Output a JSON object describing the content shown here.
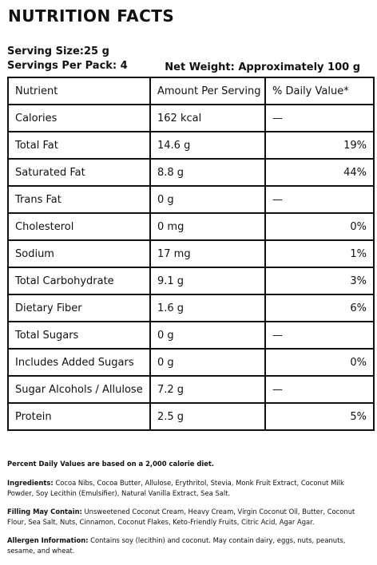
{
  "title": "NUTRITION FACTS",
  "serving_size": "Serving Size:25 g",
  "servings_per_pack": "Servings Per Pack: 4",
  "net_weight": "Net Weight: Approximately 100 g",
  "table": {
    "headers": [
      "Nutrient",
      "Amount Per Serving",
      "% Daily Value*"
    ],
    "rows": [
      {
        "nutrient": "Calories",
        "amount": "162 kcal",
        "dv": "—"
      },
      {
        "nutrient": "Total Fat",
        "amount": "14.6 g",
        "dv": "19%"
      },
      {
        "nutrient": "Saturated Fat",
        "amount": "8.8 g",
        "dv": "44%"
      },
      {
        "nutrient": "Trans Fat",
        "amount": "0 g",
        "dv": "—"
      },
      {
        "nutrient": "Cholesterol",
        "amount": "0 mg",
        "dv": "0%"
      },
      {
        "nutrient": "Sodium",
        "amount": "17 mg",
        "dv": "1%"
      },
      {
        "nutrient": "Total Carbohydrate",
        "amount": "9.1 g",
        "dv": "3%"
      },
      {
        "nutrient": "Dietary Fiber",
        "amount": "1.6 g",
        "dv": "6%"
      },
      {
        "nutrient": "Total Sugars",
        "amount": "0 g",
        "dv": "—"
      },
      {
        "nutrient": "Includes Added Sugars",
        "amount": "0 g",
        "dv": "0%"
      },
      {
        "nutrient": "Sugar Alcohols / Allulose",
        "amount": "7.2 g",
        "dv": "—"
      },
      {
        "nutrient": "Protein",
        "amount": "2.5 g",
        "dv": "5%"
      }
    ]
  },
  "notes": {
    "percent_dv": "Percent Daily Values are based on a 2,000 calorie diet.",
    "ingredients_label": "Ingredients:",
    "ingredients": " Cocoa Nibs, Cocoa Butter, Allulose, Erythritol, Stevia, Monk Fruit Extract, Coconut Milk Powder, Soy Lecithin (Emulsifier), Natural Vanilla Extract, Sea Salt.",
    "filling_label": "Filling May Contain:",
    "filling": " Unsweetened Coconut Cream, Heavy Cream, Virgin Coconut Oil, Butter, Coconut Flour, Sea Salt, Nuts, Cinnamon, Coconut Flakes, Keto-Friendly Fruits, Citric Acid, Agar Agar.",
    "allergen_label": "Allergen Information:",
    "allergen": " Contains soy (lecithin) and coconut. May contain dairy, eggs, nuts, peanuts, sesame, and wheat."
  }
}
